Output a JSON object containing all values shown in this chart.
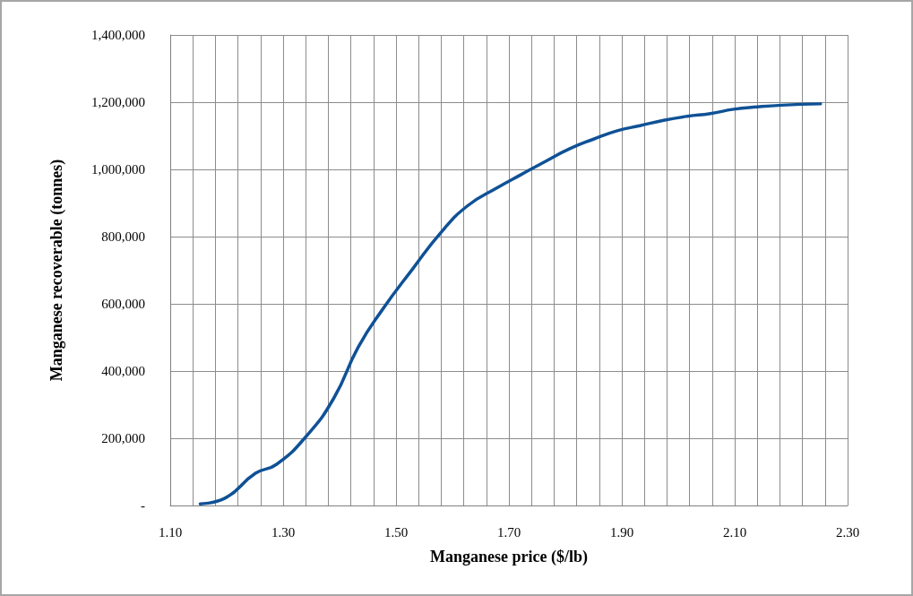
{
  "chart_data": {
    "type": "line",
    "xlabel": "Manganese price ($/lb)",
    "ylabel": "Manganese recoverable (tonnes)",
    "x": [
      1.153,
      1.196,
      1.251,
      1.288,
      1.342,
      1.39,
      1.433,
      1.476,
      1.53,
      1.579,
      1.627,
      1.682,
      1.72,
      1.765,
      1.807,
      1.85,
      1.892,
      1.932,
      1.974,
      2.016,
      2.057,
      2.098,
      2.14,
      2.183,
      2.252
    ],
    "series": [
      {
        "color": "#0f5196",
        "values": [
          5000,
          21000,
          96000,
          122000,
          208000,
          320000,
          471000,
          583000,
          705000,
          811000,
          892000,
          948000,
          983000,
          1024000,
          1061000,
          1090000,
          1115000,
          1130000,
          1146000,
          1158000,
          1166000,
          1179000,
          1186000,
          1191000,
          1195000
        ]
      }
    ],
    "xlim": [
      1.1,
      2.3
    ],
    "xticks": [
      {
        "value": 1.1,
        "label": "1.10"
      },
      {
        "value": 1.14,
        "label": null
      },
      {
        "value": 1.18,
        "label": null
      },
      {
        "value": 1.22,
        "label": null
      },
      {
        "value": 1.26,
        "label": null
      },
      {
        "value": 1.3,
        "label": "1.30"
      },
      {
        "value": 1.34,
        "label": null
      },
      {
        "value": 1.38,
        "label": null
      },
      {
        "value": 1.42,
        "label": null
      },
      {
        "value": 1.46,
        "label": null
      },
      {
        "value": 1.5,
        "label": "1.50"
      },
      {
        "value": 1.54,
        "label": null
      },
      {
        "value": 1.58,
        "label": null
      },
      {
        "value": 1.62,
        "label": null
      },
      {
        "value": 1.66,
        "label": null
      },
      {
        "value": 1.7,
        "label": "1.70"
      },
      {
        "value": 1.74,
        "label": null
      },
      {
        "value": 1.78,
        "label": null
      },
      {
        "value": 1.82,
        "label": null
      },
      {
        "value": 1.86,
        "label": null
      },
      {
        "value": 1.9,
        "label": "1.90"
      },
      {
        "value": 1.94,
        "label": null
      },
      {
        "value": 1.98,
        "label": null
      },
      {
        "value": 2.02,
        "label": null
      },
      {
        "value": 2.06,
        "label": null
      },
      {
        "value": 2.1,
        "label": "2.10"
      },
      {
        "value": 2.14,
        "label": null
      },
      {
        "value": 2.18,
        "label": null
      },
      {
        "value": 2.22,
        "label": null
      },
      {
        "value": 2.26,
        "label": null
      },
      {
        "value": 2.3,
        "label": "2.30"
      }
    ],
    "ylim": [
      0,
      1400000
    ],
    "yticks": [
      {
        "value": 0,
        "label": "-"
      },
      {
        "value": 200000,
        "label": "200,000"
      },
      {
        "value": 400000,
        "label": "400,000"
      },
      {
        "value": 600000,
        "label": "600,000"
      },
      {
        "value": 800000,
        "label": "800,000"
      },
      {
        "value": 1000000,
        "label": "1,000,000"
      },
      {
        "value": 1200000,
        "label": "1,200,000"
      },
      {
        "value": 1400000,
        "label": "1,400,000"
      }
    ],
    "grid": true,
    "marker": "none",
    "line_style": "solid"
  }
}
